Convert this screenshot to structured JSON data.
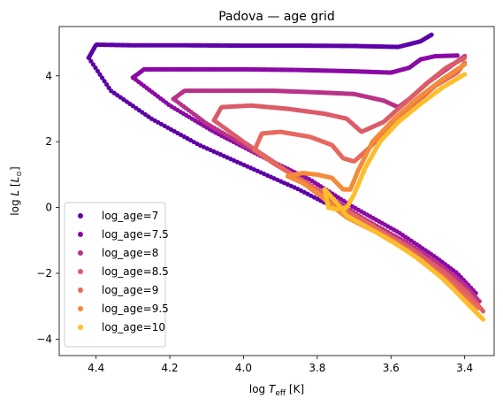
{
  "chart_data": {
    "type": "scatter",
    "title": "Padova — age grid",
    "xlabel_main": "log ",
    "xlabel_italic": "T",
    "xlabel_sub": "eff",
    "xlabel_unit": " [K]",
    "ylabel_main": "log ",
    "ylabel_italic": "L",
    "ylabel_unit_open": " [",
    "ylabel_unit_italic": "L",
    "ylabel_unit_sub": "⊙",
    "ylabel_unit_close": "]",
    "x_inverted": true,
    "xlim": [
      4.5,
      3.32
    ],
    "ylim": [
      -4.5,
      5.5
    ],
    "xticks": [
      4.4,
      4.2,
      4.0,
      3.8,
      3.6,
      3.4
    ],
    "xtick_labels": [
      "4.4",
      "4.2",
      "4.0",
      "3.8",
      "3.6",
      "3.4"
    ],
    "yticks": [
      4,
      2,
      0,
      -2,
      -4
    ],
    "ytick_labels": [
      "4",
      "2",
      "0",
      "−2",
      "−4"
    ],
    "legend_position": "lower-left",
    "series": [
      {
        "name": "log_age=7",
        "color": "#5d01a6",
        "ms": [
          [
            4.42,
            4.55
          ],
          [
            4.36,
            3.55
          ],
          [
            4.25,
            2.7
          ],
          [
            4.12,
            1.9
          ],
          [
            3.98,
            1.2
          ],
          [
            3.85,
            0.55
          ],
          [
            3.72,
            -0.2
          ],
          [
            3.6,
            -0.9
          ],
          [
            3.5,
            -1.55
          ],
          [
            3.42,
            -2.2
          ],
          [
            3.4,
            -2.4
          ]
        ],
        "branch": [
          [
            4.42,
            4.55
          ],
          [
            4.4,
            4.95
          ],
          [
            4.3,
            4.93
          ],
          [
            4.15,
            4.93
          ],
          [
            4.0,
            4.92
          ],
          [
            3.85,
            4.92
          ],
          [
            3.7,
            4.91
          ],
          [
            3.58,
            4.88
          ],
          [
            3.52,
            5.05
          ],
          [
            3.49,
            5.25
          ]
        ]
      },
      {
        "name": "log_age=7.5",
        "color": "#8b0aa5",
        "ms": [
          [
            4.3,
            3.95
          ],
          [
            4.2,
            3.1
          ],
          [
            4.08,
            2.3
          ],
          [
            3.95,
            1.55
          ],
          [
            3.82,
            0.85
          ],
          [
            3.7,
            0.0
          ],
          [
            3.58,
            -0.75
          ],
          [
            3.48,
            -1.5
          ],
          [
            3.42,
            -2.0
          ],
          [
            3.37,
            -2.6
          ]
        ],
        "branch": [
          [
            4.3,
            3.95
          ],
          [
            4.27,
            4.2
          ],
          [
            4.15,
            4.2
          ],
          [
            4.0,
            4.2
          ],
          [
            3.85,
            4.18
          ],
          [
            3.7,
            4.14
          ],
          [
            3.6,
            4.1
          ],
          [
            3.55,
            4.25
          ],
          [
            3.52,
            4.5
          ],
          [
            3.48,
            4.6
          ],
          [
            3.42,
            4.62
          ]
        ]
      },
      {
        "name": "log_age=8",
        "color": "#b83289",
        "ms": [
          [
            4.19,
            3.3
          ],
          [
            4.1,
            2.55
          ],
          [
            4.0,
            1.9
          ],
          [
            3.9,
            1.25
          ],
          [
            3.8,
            0.55
          ],
          [
            3.68,
            -0.3
          ],
          [
            3.56,
            -1.05
          ],
          [
            3.46,
            -1.8
          ],
          [
            3.4,
            -2.35
          ],
          [
            3.36,
            -2.85
          ]
        ],
        "branch": [
          [
            4.19,
            3.3
          ],
          [
            4.16,
            3.55
          ],
          [
            4.05,
            3.55
          ],
          [
            3.92,
            3.55
          ],
          [
            3.8,
            3.5
          ],
          [
            3.7,
            3.45
          ],
          [
            3.62,
            3.25
          ],
          [
            3.58,
            3.05
          ],
          [
            3.55,
            3.3
          ],
          [
            3.5,
            3.8
          ],
          [
            3.45,
            4.2
          ],
          [
            3.4,
            4.6
          ]
        ]
      },
      {
        "name": "log_age=8.5",
        "color": "#db5c68",
        "ms": [
          [
            4.08,
            2.65
          ],
          [
            4.0,
            2.0
          ],
          [
            3.92,
            1.4
          ],
          [
            3.85,
            0.85
          ],
          [
            3.78,
            0.25
          ],
          [
            3.66,
            -0.5
          ],
          [
            3.55,
            -1.2
          ],
          [
            3.45,
            -2.0
          ],
          [
            3.39,
            -2.6
          ],
          [
            3.35,
            -3.15
          ]
        ],
        "branch": [
          [
            4.08,
            2.65
          ],
          [
            4.06,
            3.05
          ],
          [
            3.98,
            3.1
          ],
          [
            3.88,
            3.0
          ],
          [
            3.78,
            2.85
          ],
          [
            3.72,
            2.7
          ],
          [
            3.68,
            2.3
          ],
          [
            3.62,
            2.6
          ],
          [
            3.56,
            3.2
          ],
          [
            3.5,
            3.8
          ],
          [
            3.45,
            4.25
          ],
          [
            3.4,
            4.55
          ]
        ]
      },
      {
        "name": "log_age=9",
        "color": "#e8685e",
        "ms": [
          [
            3.97,
            1.75
          ],
          [
            3.92,
            1.35
          ],
          [
            3.86,
            0.95
          ],
          [
            3.8,
            0.55
          ],
          [
            3.75,
            0.1
          ],
          [
            3.65,
            -0.55
          ],
          [
            3.55,
            -1.3
          ],
          [
            3.46,
            -2.05
          ],
          [
            3.4,
            -2.65
          ],
          [
            3.36,
            -3.05
          ]
        ],
        "branch": [
          [
            3.97,
            1.75
          ],
          [
            3.95,
            2.25
          ],
          [
            3.9,
            2.3
          ],
          [
            3.82,
            2.15
          ],
          [
            3.76,
            1.9
          ],
          [
            3.73,
            1.5
          ],
          [
            3.7,
            1.4
          ],
          [
            3.66,
            1.8
          ],
          [
            3.6,
            2.5
          ],
          [
            3.54,
            3.1
          ],
          [
            3.48,
            3.7
          ],
          [
            3.42,
            4.1
          ],
          [
            3.4,
            4.4
          ]
        ]
      },
      {
        "name": "log_age=9.5",
        "color": "#f48b3b",
        "ms": [
          [
            3.88,
            0.95
          ],
          [
            3.84,
            0.75
          ],
          [
            3.8,
            0.45
          ],
          [
            3.76,
            0.05
          ],
          [
            3.72,
            -0.3
          ],
          [
            3.64,
            -0.75
          ],
          [
            3.55,
            -1.35
          ],
          [
            3.47,
            -2.05
          ],
          [
            3.41,
            -2.7
          ],
          [
            3.37,
            -3.1
          ]
        ],
        "branch": [
          [
            3.88,
            0.95
          ],
          [
            3.84,
            1.05
          ],
          [
            3.8,
            1.0
          ],
          [
            3.76,
            0.9
          ],
          [
            3.73,
            0.55
          ],
          [
            3.71,
            0.55
          ],
          [
            3.69,
            1.1
          ],
          [
            3.65,
            2.0
          ],
          [
            3.59,
            2.7
          ],
          [
            3.53,
            3.3
          ],
          [
            3.46,
            3.9
          ],
          [
            3.4,
            4.35
          ]
        ]
      },
      {
        "name": "log_age=10",
        "color": "#febd2a",
        "ms": [
          [
            3.78,
            0.55
          ],
          [
            3.76,
            0.3
          ],
          [
            3.74,
            0.05
          ],
          [
            3.72,
            -0.25
          ],
          [
            3.68,
            -0.5
          ],
          [
            3.6,
            -1.0
          ],
          [
            3.52,
            -1.6
          ],
          [
            3.45,
            -2.25
          ],
          [
            3.39,
            -2.95
          ],
          [
            3.35,
            -3.4
          ]
        ],
        "branch": [
          [
            3.78,
            0.55
          ],
          [
            3.77,
            0.0
          ],
          [
            3.75,
            -0.05
          ],
          [
            3.72,
            0.0
          ],
          [
            3.7,
            0.4
          ],
          [
            3.67,
            1.2
          ],
          [
            3.63,
            2.0
          ],
          [
            3.58,
            2.6
          ],
          [
            3.52,
            3.15
          ],
          [
            3.46,
            3.65
          ],
          [
            3.4,
            4.05
          ]
        ]
      }
    ]
  }
}
